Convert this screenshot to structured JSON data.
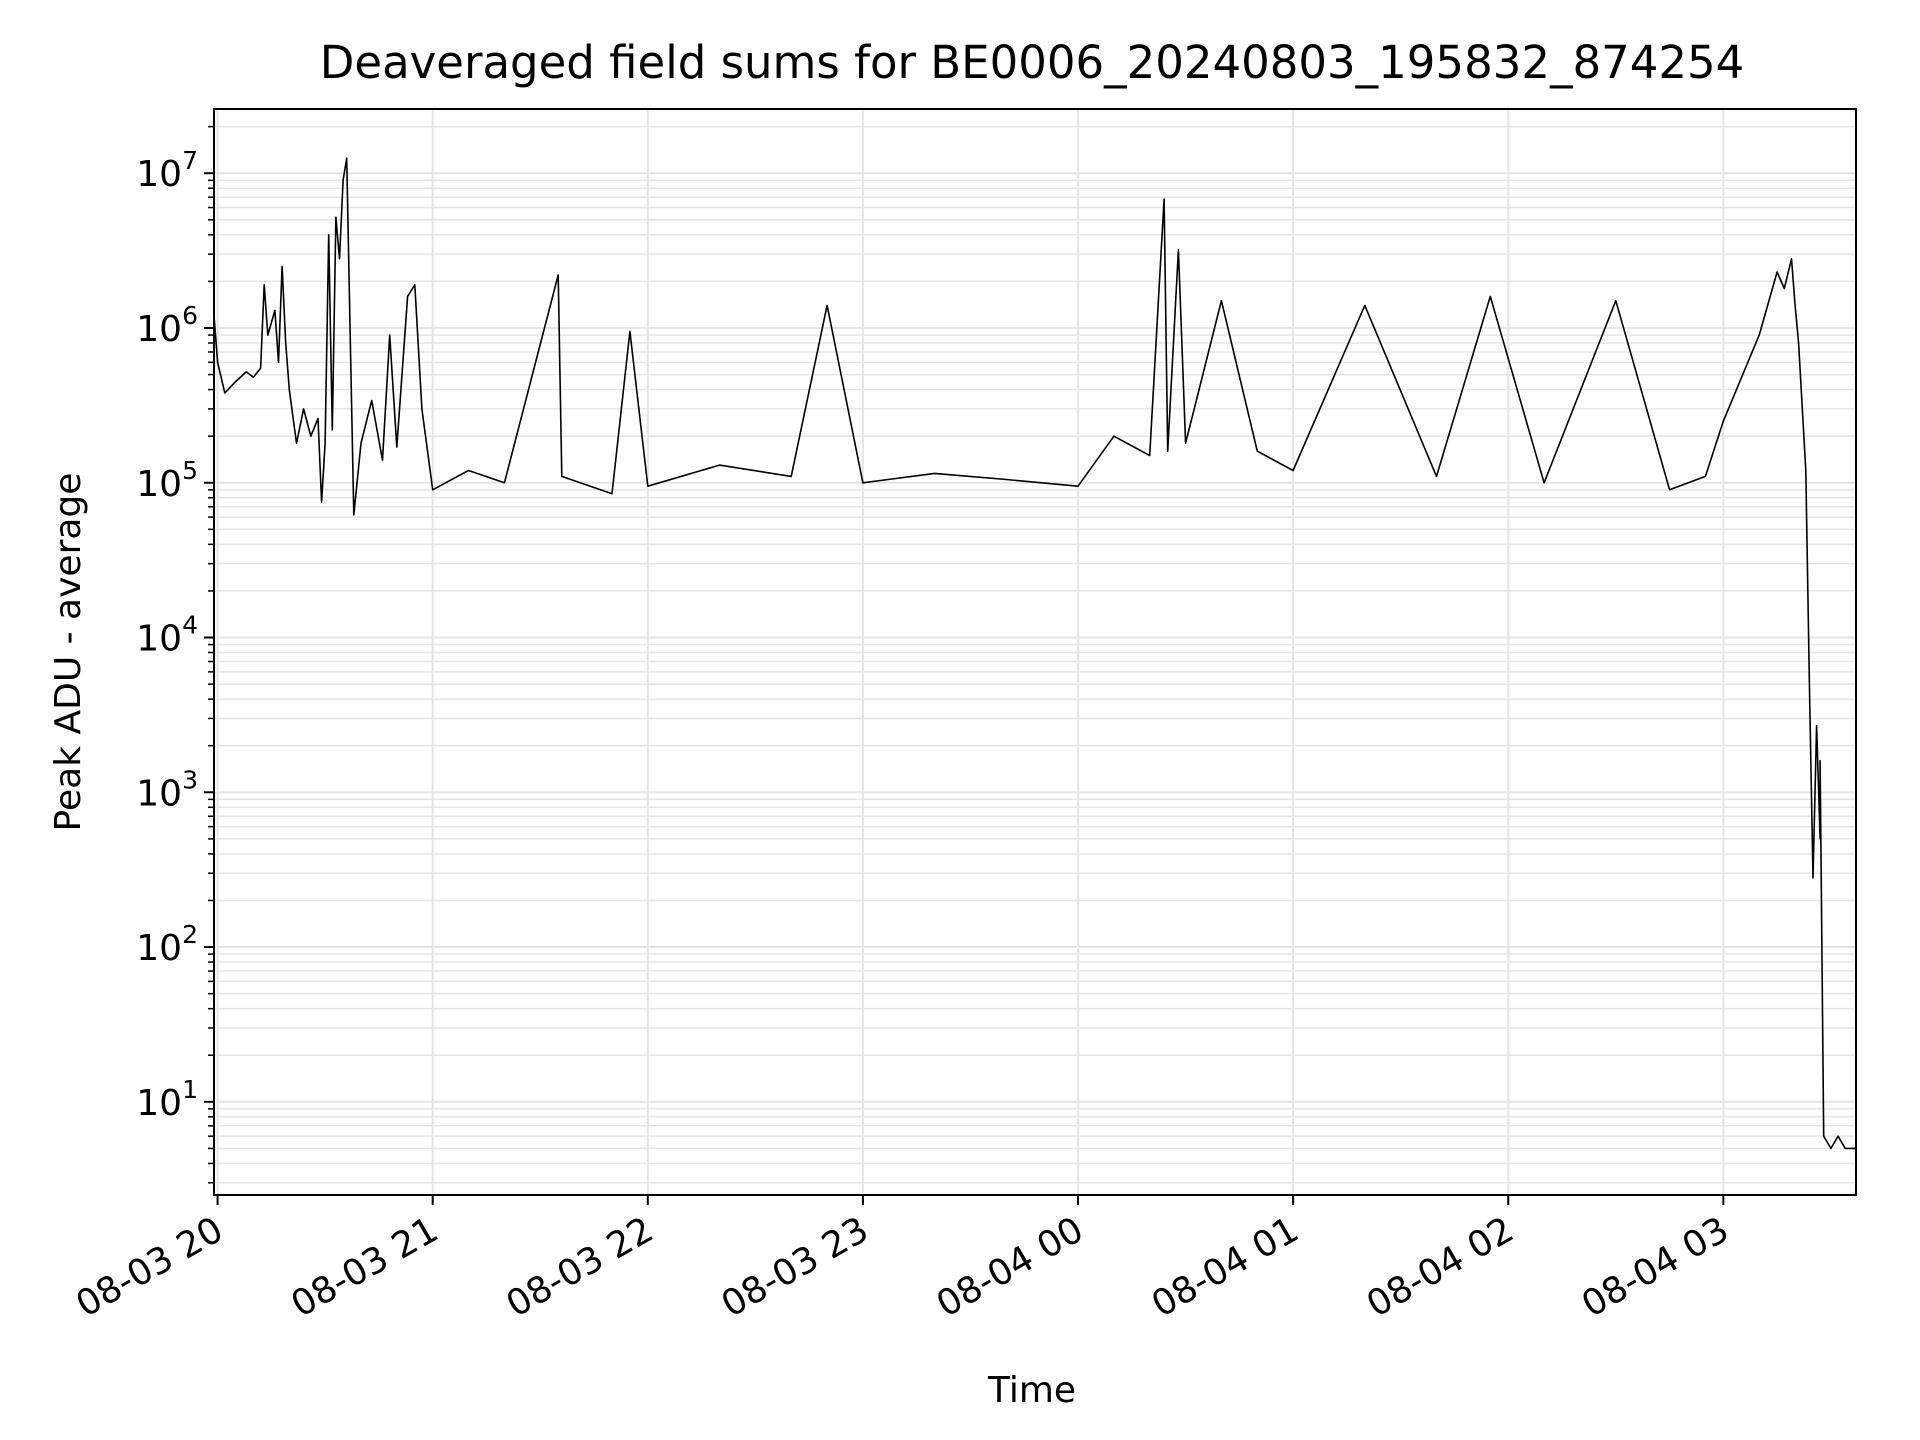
{
  "chart_data": {
    "type": "line",
    "title": "Deaveraged field sums for BE0006_20240803_195832_874254",
    "xlabel": "Time",
    "ylabel": "Peak ADU - average",
    "y_scale": "log",
    "ylim": [
      2.5,
      26000000
    ],
    "xlim": [
      "2024-08-03 19:59",
      "2024-08-04 03:37"
    ],
    "grid": true,
    "grid_color": "#e5e5e5",
    "line_color": "#000000",
    "x_ticks": [
      {
        "t": "2024-08-03 20:00",
        "label": "08-03 20"
      },
      {
        "t": "2024-08-03 21:00",
        "label": "08-03 21"
      },
      {
        "t": "2024-08-03 22:00",
        "label": "08-03 22"
      },
      {
        "t": "2024-08-03 23:00",
        "label": "08-03 23"
      },
      {
        "t": "2024-08-04 00:00",
        "label": "08-04 00"
      },
      {
        "t": "2024-08-04 01:00",
        "label": "08-04 01"
      },
      {
        "t": "2024-08-04 02:00",
        "label": "08-04 02"
      },
      {
        "t": "2024-08-04 03:00",
        "label": "08-04 03"
      }
    ],
    "y_ticks": [
      {
        "value": 10,
        "base": "10",
        "exp": "1"
      },
      {
        "value": 100,
        "base": "10",
        "exp": "2"
      },
      {
        "value": 1000,
        "base": "10",
        "exp": "3"
      },
      {
        "value": 10000,
        "base": "10",
        "exp": "4"
      },
      {
        "value": 100000,
        "base": "10",
        "exp": "5"
      },
      {
        "value": 1000000,
        "base": "10",
        "exp": "6"
      },
      {
        "value": 10000000,
        "base": "10",
        "exp": "7"
      }
    ],
    "series": [
      {
        "points": [
          [
            "2024-08-03 19:59",
            1200000
          ],
          [
            "2024-08-03 20:00",
            600000
          ],
          [
            "2024-08-03 20:02",
            380000
          ],
          [
            "2024-08-03 20:05",
            450000
          ],
          [
            "2024-08-03 20:08",
            520000
          ],
          [
            "2024-08-03 20:10",
            480000
          ],
          [
            "2024-08-03 20:12",
            550000
          ],
          [
            "2024-08-03 20:13",
            1900000
          ],
          [
            "2024-08-03 20:14",
            900000
          ],
          [
            "2024-08-03 20:16",
            1300000
          ],
          [
            "2024-08-03 20:17",
            600000
          ],
          [
            "2024-08-03 20:18",
            2500000
          ],
          [
            "2024-08-03 20:19",
            800000
          ],
          [
            "2024-08-03 20:20",
            400000
          ],
          [
            "2024-08-03 20:22",
            180000
          ],
          [
            "2024-08-03 20:24",
            300000
          ],
          [
            "2024-08-03 20:26",
            200000
          ],
          [
            "2024-08-03 20:28",
            260000
          ],
          [
            "2024-08-03 20:29",
            75000
          ],
          [
            "2024-08-03 20:30",
            180000
          ],
          [
            "2024-08-03 20:31",
            4000000
          ],
          [
            "2024-08-03 20:32",
            220000
          ],
          [
            "2024-08-03 20:33",
            5200000
          ],
          [
            "2024-08-03 20:34",
            2800000
          ],
          [
            "2024-08-03 20:35",
            9000000
          ],
          [
            "2024-08-03 20:36",
            12500000
          ],
          [
            "2024-08-03 20:37",
            900000
          ],
          [
            "2024-08-03 20:38",
            62000
          ],
          [
            "2024-08-03 20:40",
            180000
          ],
          [
            "2024-08-03 20:43",
            340000
          ],
          [
            "2024-08-03 20:46",
            140000
          ],
          [
            "2024-08-03 20:48",
            900000
          ],
          [
            "2024-08-03 20:50",
            170000
          ],
          [
            "2024-08-03 20:53",
            1600000
          ],
          [
            "2024-08-03 20:55",
            1900000
          ],
          [
            "2024-08-03 20:57",
            300000
          ],
          [
            "2024-08-03 21:00",
            90000
          ],
          [
            "2024-08-03 21:10",
            120000
          ],
          [
            "2024-08-03 21:20",
            100000
          ],
          [
            "2024-08-03 21:35",
            2200000
          ],
          [
            "2024-08-03 21:36",
            110000
          ],
          [
            "2024-08-03 21:50",
            85000
          ],
          [
            "2024-08-03 21:55",
            950000
          ],
          [
            "2024-08-03 22:00",
            95000
          ],
          [
            "2024-08-03 22:20",
            130000
          ],
          [
            "2024-08-03 22:40",
            110000
          ],
          [
            "2024-08-03 22:50",
            1400000
          ],
          [
            "2024-08-03 23:00",
            100000
          ],
          [
            "2024-08-03 23:20",
            115000
          ],
          [
            "2024-08-03 23:40",
            105000
          ],
          [
            "2024-08-04 00:00",
            95000
          ],
          [
            "2024-08-04 00:10",
            200000
          ],
          [
            "2024-08-04 00:20",
            150000
          ],
          [
            "2024-08-04 00:24",
            6800000
          ],
          [
            "2024-08-04 00:25",
            160000
          ],
          [
            "2024-08-04 00:28",
            3200000
          ],
          [
            "2024-08-04 00:30",
            180000
          ],
          [
            "2024-08-04 00:40",
            1500000
          ],
          [
            "2024-08-04 00:50",
            160000
          ],
          [
            "2024-08-04 01:00",
            120000
          ],
          [
            "2024-08-04 01:20",
            1400000
          ],
          [
            "2024-08-04 01:40",
            110000
          ],
          [
            "2024-08-04 01:55",
            1600000
          ],
          [
            "2024-08-04 02:10",
            100000
          ],
          [
            "2024-08-04 02:30",
            1500000
          ],
          [
            "2024-08-04 02:45",
            90000
          ],
          [
            "2024-08-04 02:55",
            110000
          ],
          [
            "2024-08-04 03:00",
            250000
          ],
          [
            "2024-08-04 03:10",
            900000
          ],
          [
            "2024-08-04 03:15",
            2300000
          ],
          [
            "2024-08-04 03:17",
            1800000
          ],
          [
            "2024-08-04 03:19",
            2800000
          ],
          [
            "2024-08-04 03:20",
            1400000
          ],
          [
            "2024-08-04 03:21",
            800000
          ],
          [
            "2024-08-04 03:23",
            120000
          ],
          [
            "2024-08-04 03:24",
            5000
          ],
          [
            "2024-08-04 03:25",
            280
          ],
          [
            "2024-08-04 03:26",
            2700
          ],
          [
            "2024-08-04 03:27",
            500
          ],
          [
            "2024-08-04 03:27",
            1600
          ],
          [
            "2024-08-04 03:28",
            6
          ],
          [
            "2024-08-04 03:30",
            5
          ],
          [
            "2024-08-04 03:32",
            6
          ],
          [
            "2024-08-04 03:34",
            5
          ],
          [
            "2024-08-04 03:37",
            5
          ]
        ]
      }
    ]
  }
}
